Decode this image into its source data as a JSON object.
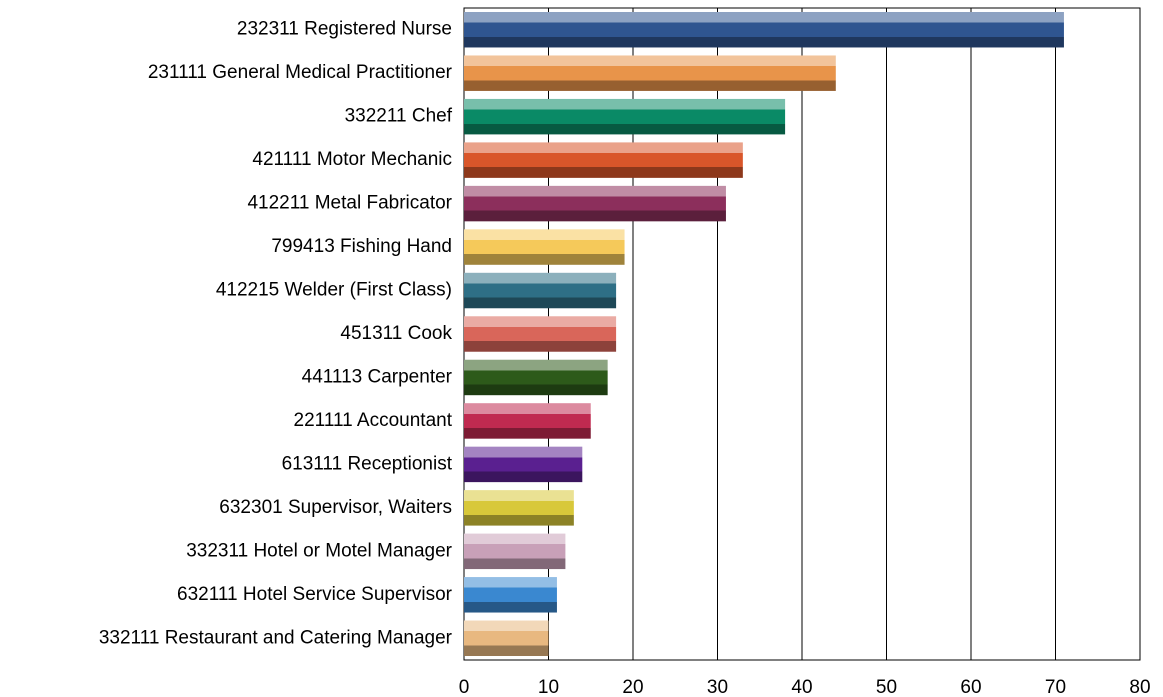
{
  "chart_data": {
    "type": "bar",
    "orientation": "horizontal",
    "categories": [
      "232311 Registered Nurse",
      "231111 General Medical Practitioner",
      "332211 Chef",
      "421111 Motor Mechanic",
      "412211 Metal Fabricator",
      "799413 Fishing Hand",
      "412215 Welder (First Class)",
      "451311 Cook",
      "441113 Carpenter",
      "221111 Accountant",
      "613111 Receptionist",
      "632301 Supervisor, Waiters",
      "332311 Hotel or Motel Manager",
      "632111 Hotel Service Supervisor",
      "332111 Restaurant and Catering Manager"
    ],
    "values": [
      71,
      44,
      38,
      33,
      31,
      19,
      18,
      18,
      17,
      15,
      14,
      13,
      12,
      11,
      10
    ],
    "colors": [
      "#2f5590",
      "#e8944a",
      "#0a8a66",
      "#d9562a",
      "#8c2f5c",
      "#f5c95a",
      "#2e6f86",
      "#d9665a",
      "#2d5a1a",
      "#c02a50",
      "#5a2090",
      "#d8c83a",
      "#c8a0b8",
      "#3a88d0",
      "#e8b880"
    ],
    "xlim": [
      0,
      80
    ],
    "xticks": [
      0,
      10,
      20,
      30,
      40,
      50,
      60,
      70,
      80
    ],
    "grid": true
  }
}
